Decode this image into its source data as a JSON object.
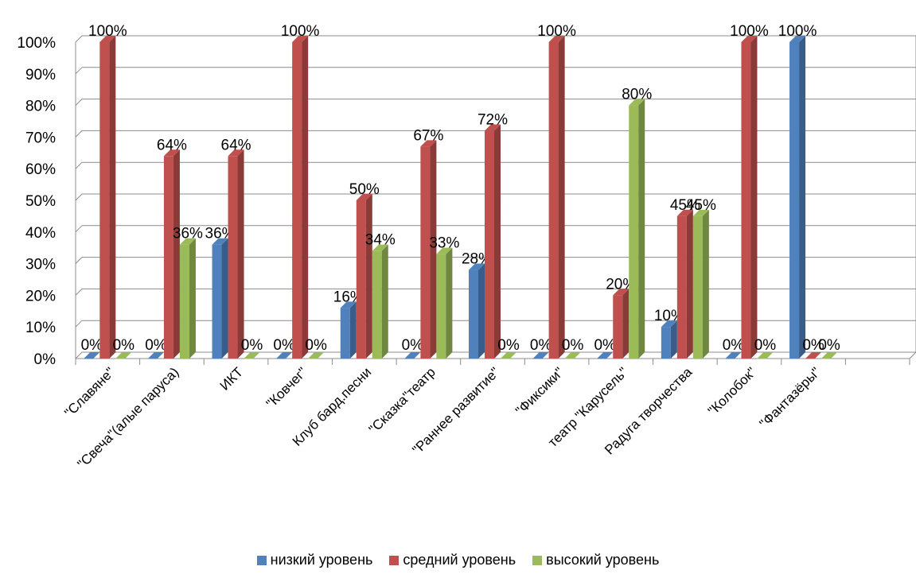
{
  "chart_data": {
    "type": "bar",
    "title": "",
    "xlabel": "",
    "ylabel": "",
    "ylim": [
      0,
      100
    ],
    "y_ticks": [
      "0%",
      "10%",
      "20%",
      "30%",
      "40%",
      "50%",
      "60%",
      "70%",
      "80%",
      "90%",
      "100%"
    ],
    "grid": true,
    "legend_position": "bottom",
    "categories": [
      "\"Славяне\"",
      "\"Свеча\"(алые паруса)",
      "ИКТ",
      "\"Ковчег\"",
      "Клуб бард.песни",
      "\"Сказка\"театр",
      "\"Раннее развитие\"",
      "\"Фиксики\"",
      "театр \"Карусель\"",
      "Радуга творчества",
      "\"Колобок\"",
      "\"Фантазёры\""
    ],
    "series": [
      {
        "name": "низкий уровень",
        "color": "#4F81BD",
        "values": [
          0,
          0,
          36,
          0,
          16,
          0,
          28,
          0,
          0,
          10,
          0,
          100
        ],
        "labels": [
          "0%",
          "0%",
          "36%",
          "0%",
          "16%",
          "0%",
          "28%",
          "0%",
          "0%",
          "10%",
          "0%",
          "100%"
        ]
      },
      {
        "name": "средний уровень",
        "color": "#C0504D",
        "values": [
          100,
          64,
          64,
          100,
          50,
          67,
          72,
          100,
          20,
          45,
          100,
          0
        ],
        "labels": [
          "100%",
          "64%",
          "64%",
          "100%",
          "50%",
          "67%",
          "72%",
          "100%",
          "20%",
          "45%",
          "100%",
          "0%"
        ]
      },
      {
        "name": "высокий уровень",
        "color": "#9BBB59",
        "values": [
          0,
          36,
          0,
          0,
          34,
          33,
          0,
          0,
          80,
          45,
          0,
          0
        ],
        "labels": [
          "0%",
          "36%",
          "0%",
          "0%",
          "34%",
          "33%",
          "0%",
          "0%",
          "80%",
          "45%",
          "0%",
          "0%"
        ]
      }
    ]
  }
}
